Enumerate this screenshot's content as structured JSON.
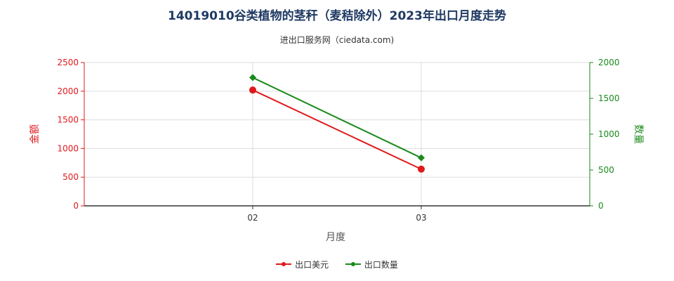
{
  "title": "14019010谷类植物的茎秆（麦秸除外）2023年出口月度走势",
  "subtitle": "进出口服务网（ciedata.com)",
  "colors": {
    "export_value": "#e0191c",
    "export_qty": "#1a8a1a",
    "title": "#1f3a63"
  },
  "chart_data": {
    "type": "line",
    "categories": [
      "02",
      "03"
    ],
    "xlabel": "月度",
    "ylabel_left": "金额",
    "ylabel_right": "数量",
    "ylim_left": [
      0,
      2500
    ],
    "ylim_right": [
      0,
      2000
    ],
    "yticks_left": [
      0,
      500,
      1000,
      1500,
      2000,
      2500
    ],
    "yticks_right": [
      0,
      500,
      1000,
      1500,
      2000
    ],
    "grid": true,
    "legend_position": "bottom",
    "series": [
      {
        "name": "出口美元",
        "axis": "left",
        "color": "#e0191c",
        "marker": "circle",
        "values": [
          2020,
          640
        ]
      },
      {
        "name": "出口数量",
        "axis": "right",
        "color": "#1a8a1a",
        "marker": "diamond",
        "values": [
          1790,
          670
        ]
      }
    ]
  }
}
